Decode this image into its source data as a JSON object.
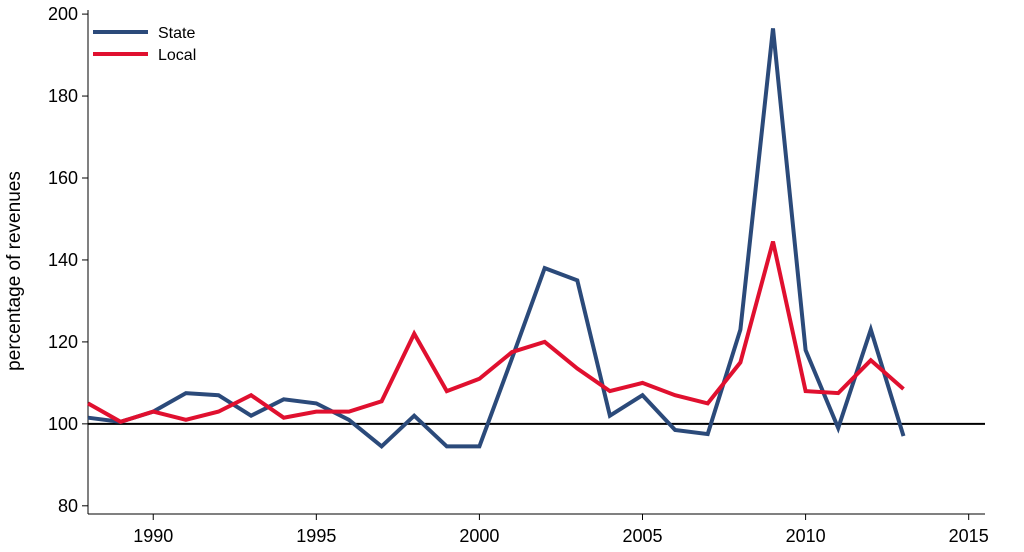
{
  "chart_data": {
    "type": "line",
    "ylabel": "percentage of revenues",
    "xlabel": "",
    "xlim": [
      1988,
      2015.5
    ],
    "ylim": [
      78,
      201
    ],
    "xticks": [
      1990,
      1995,
      2000,
      2005,
      2010,
      2015
    ],
    "yticks": [
      80,
      100,
      120,
      140,
      160,
      180,
      200
    ],
    "reference_line": 100,
    "legend_position": "top-left",
    "series": [
      {
        "name": "State",
        "color": "#2b4a7a",
        "x": [
          1988,
          1989,
          1990,
          1991,
          1992,
          1993,
          1994,
          1995,
          1996,
          1997,
          1998,
          1999,
          2000,
          2001,
          2002,
          2003,
          2004,
          2005,
          2006,
          2007,
          2008,
          2009,
          2010,
          2011,
          2012,
          2013
        ],
        "y": [
          101.5,
          100.5,
          103,
          107.5,
          107,
          102,
          106,
          105,
          101,
          94.5,
          102,
          94.5,
          94.5,
          116,
          138,
          135,
          102,
          107,
          98.5,
          97.5,
          123,
          196.5,
          118,
          99,
          123,
          97
        ]
      },
      {
        "name": "Local",
        "color": "#e0102f",
        "x": [
          1988,
          1989,
          1990,
          1991,
          1992,
          1993,
          1994,
          1995,
          1996,
          1997,
          1998,
          1999,
          2000,
          2001,
          2002,
          2003,
          2004,
          2005,
          2006,
          2007,
          2008,
          2009,
          2010,
          2011,
          2012,
          2013
        ],
        "y": [
          105,
          100.5,
          103,
          101,
          103,
          107,
          101.5,
          103,
          103,
          105.5,
          122,
          108,
          111,
          117.5,
          120,
          113.5,
          108,
          110,
          107,
          105,
          115,
          144.5,
          108,
          107.5,
          115.5,
          108.5
        ]
      }
    ]
  }
}
